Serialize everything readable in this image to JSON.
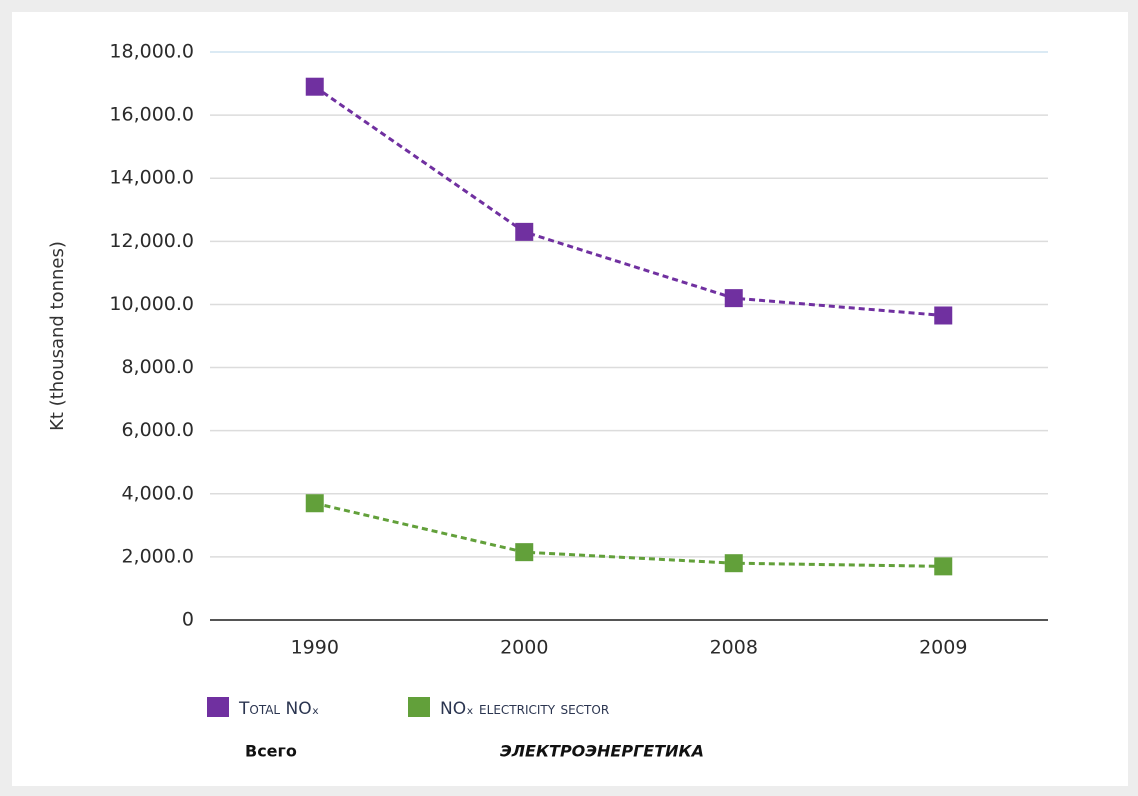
{
  "chart_data": {
    "type": "line",
    "y_label": "Kt (thousand tonnes)",
    "categories": [
      "1990",
      "2000",
      "2008",
      "2009"
    ],
    "series": [
      {
        "name": "Total NOₓ",
        "color": "#7030a0",
        "values": [
          16900,
          12300,
          10200,
          9650
        ]
      },
      {
        "name": "NOₓ electricity sector",
        "color": "#62a03a",
        "values": [
          3700,
          2150,
          1800,
          1700
        ]
      }
    ],
    "annotations": [
      "Всего",
      "ЭЛЕКТРОЭНЕРГЕТИКА"
    ],
    "ylim": [
      0,
      18000
    ],
    "yticks": [
      0,
      {
        "value": 2000,
        "label": "2,000.0"
      },
      {
        "value": 4000,
        "label": "4,000.0"
      },
      {
        "value": 6000,
        "label": "6,000.0"
      },
      {
        "value": 8000,
        "label": "8,000.0"
      },
      {
        "value": 10000,
        "label": "10,000.0"
      },
      {
        "value": 12000,
        "label": "12,000.0"
      },
      {
        "value": 14000,
        "label": "14,000.0"
      },
      {
        "value": 16000,
        "label": "16,000.0"
      },
      {
        "value": 18000,
        "label": "18,000.0"
      }
    ],
    "grid": true
  }
}
